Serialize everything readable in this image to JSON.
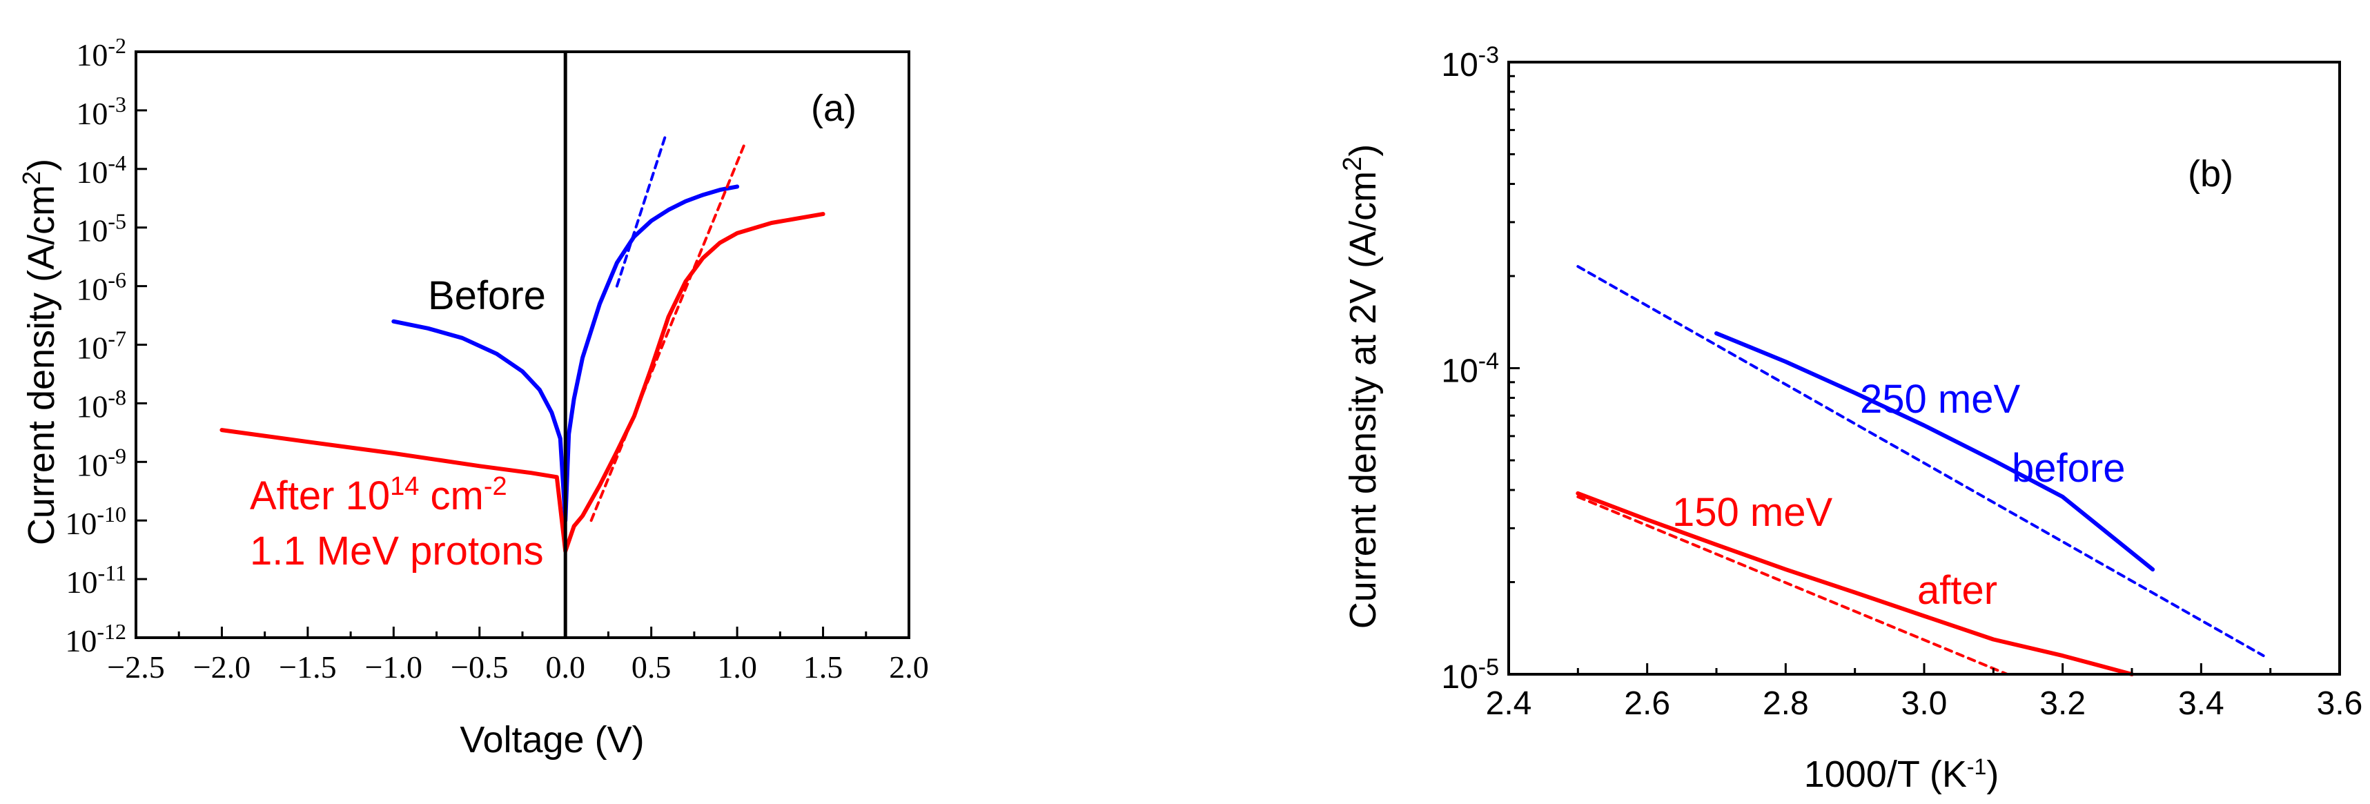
{
  "chart_data": [
    {
      "type": "line",
      "panel_label": "(a)",
      "xlabel": "Voltage (V)",
      "ylabel": "Current density (A/cm",
      "ylabel_sup": "2",
      "ylabel_end": ")",
      "xlim": [
        -2.5,
        2.0
      ],
      "y_scale": "log",
      "ylim_exp": [
        -12,
        -2
      ],
      "x_ticks": [
        -2.5,
        -2.0,
        -1.5,
        -1.0,
        -0.5,
        0.0,
        0.5,
        1.0,
        1.5,
        2.0
      ],
      "x_tick_labels": [
        "−2.5",
        "−2.0",
        "−1.5",
        "−1.0",
        "−0.5",
        "0.0",
        "0.5",
        "1.0",
        "1.5",
        "2.0"
      ],
      "y_tick_exponents": [
        -12,
        -11,
        -10,
        -9,
        -8,
        -7,
        -6,
        -5,
        -4,
        -3,
        -2
      ],
      "y_tick_base": "10",
      "colors": {
        "before": "#0000ff",
        "after": "#ff0000",
        "zero_line": "#000000"
      },
      "series": [
        {
          "name": "Before",
          "color": "#0000ff",
          "style": "solid",
          "points": [
            [
              -1.0,
              2.5e-07
            ],
            [
              -0.8,
              1.9e-07
            ],
            [
              -0.6,
              1.3e-07
            ],
            [
              -0.4,
              7e-08
            ],
            [
              -0.25,
              3.5e-08
            ],
            [
              -0.15,
              1.7e-08
            ],
            [
              -0.08,
              7e-09
            ],
            [
              -0.03,
              2.5e-09
            ],
            [
              0.0,
              1e-10
            ],
            [
              0.02,
              3e-09
            ],
            [
              0.05,
              1.2e-08
            ],
            [
              0.1,
              6e-08
            ],
            [
              0.2,
              5e-07
            ],
            [
              0.3,
              2.5e-06
            ],
            [
              0.4,
              7e-06
            ],
            [
              0.5,
              1.3e-05
            ],
            [
              0.6,
              2e-05
            ],
            [
              0.7,
              2.8e-05
            ],
            [
              0.8,
              3.6e-05
            ],
            [
              0.9,
              4.4e-05
            ],
            [
              1.0,
              5e-05
            ]
          ]
        },
        {
          "name": "After 10¹⁴ cm⁻² 1.1 MeV protons",
          "color": "#ff0000",
          "style": "solid",
          "points": [
            [
              -2.0,
              3.5e-09
            ],
            [
              -1.5,
              2.2e-09
            ],
            [
              -1.0,
              1.4e-09
            ],
            [
              -0.5,
              8.5e-10
            ],
            [
              -0.2,
              6.5e-10
            ],
            [
              -0.05,
              5.5e-10
            ],
            [
              0.0,
              3e-11
            ],
            [
              0.05,
              8e-11
            ],
            [
              0.1,
              1.2e-10
            ],
            [
              0.2,
              4e-10
            ],
            [
              0.3,
              1.5e-09
            ],
            [
              0.4,
              6e-09
            ],
            [
              0.5,
              4e-08
            ],
            [
              0.6,
              3e-07
            ],
            [
              0.7,
              1.2e-06
            ],
            [
              0.8,
              3e-06
            ],
            [
              0.9,
              5.5e-06
            ],
            [
              1.0,
              8e-06
            ],
            [
              1.2,
              1.2e-05
            ],
            [
              1.5,
              1.7e-05
            ]
          ]
        },
        {
          "name": "Before fit",
          "color": "#0000ff",
          "style": "dashed",
          "points": [
            [
              0.3,
              1e-06
            ],
            [
              0.58,
              0.00035
            ]
          ]
        },
        {
          "name": "After fit",
          "color": "#ff0000",
          "style": "dashed",
          "points": [
            [
              0.15,
              1e-10
            ],
            [
              1.05,
              0.0003
            ]
          ]
        }
      ],
      "annotations": {
        "before": "Before",
        "after_line1_prefix": "After 10",
        "after_line1_sup1": "14",
        "after_line1_mid": " cm",
        "after_line1_sup2": "-2",
        "after_line2": "1.1 MeV protons"
      }
    },
    {
      "type": "line",
      "panel_label": "(b)",
      "xlabel": "1000/T (K",
      "xlabel_sup": "-1",
      "xlabel_end": ")",
      "ylabel": "Current density at 2V (A/cm",
      "ylabel_sup": "2",
      "ylabel_end": ")",
      "xlim": [
        2.4,
        3.6
      ],
      "y_scale": "log",
      "ylim_exp": [
        -5,
        -3
      ],
      "x_ticks": [
        2.4,
        2.6,
        2.8,
        3.0,
        3.2,
        3.4,
        3.6
      ],
      "x_tick_labels": [
        "2.4",
        "2.6",
        "2.8",
        "3.0",
        "3.2",
        "3.4",
        "3.6"
      ],
      "y_tick_exponents": [
        -5,
        -4,
        -3
      ],
      "y_tick_base": "10",
      "colors": {
        "before": "#0000ff",
        "after": "#ff0000"
      },
      "series": [
        {
          "name": "before",
          "color": "#0000ff",
          "style": "solid",
          "points": [
            [
              2.7,
              0.00013
            ],
            [
              2.8,
              0.000105
            ],
            [
              2.9,
              8.3e-05
            ],
            [
              3.0,
              6.5e-05
            ],
            [
              3.1,
              5e-05
            ],
            [
              3.2,
              3.8e-05
            ],
            [
              3.33,
              2.2e-05
            ]
          ]
        },
        {
          "name": "after",
          "color": "#ff0000",
          "style": "solid",
          "points": [
            [
              2.5,
              3.9e-05
            ],
            [
              2.6,
              3.2e-05
            ],
            [
              2.7,
              2.65e-05
            ],
            [
              2.8,
              2.2e-05
            ],
            [
              2.9,
              1.85e-05
            ],
            [
              3.0,
              1.55e-05
            ],
            [
              3.1,
              1.3e-05
            ],
            [
              3.2,
              1.15e-05
            ],
            [
              3.3,
              1e-05
            ]
          ]
        },
        {
          "name": "250 meV fit",
          "color": "#0000ff",
          "style": "dashed",
          "points": [
            [
              2.5,
              0.000215
            ],
            [
              3.49,
              1.15e-05
            ]
          ]
        },
        {
          "name": "150 meV fit",
          "color": "#ff0000",
          "style": "dashed",
          "points": [
            [
              2.5,
              3.8e-05
            ],
            [
              3.12,
              1e-05
            ]
          ]
        }
      ],
      "annotations": {
        "energy_before": "250 meV",
        "label_before": "before",
        "energy_after": "150 meV",
        "label_after": "after"
      }
    }
  ]
}
